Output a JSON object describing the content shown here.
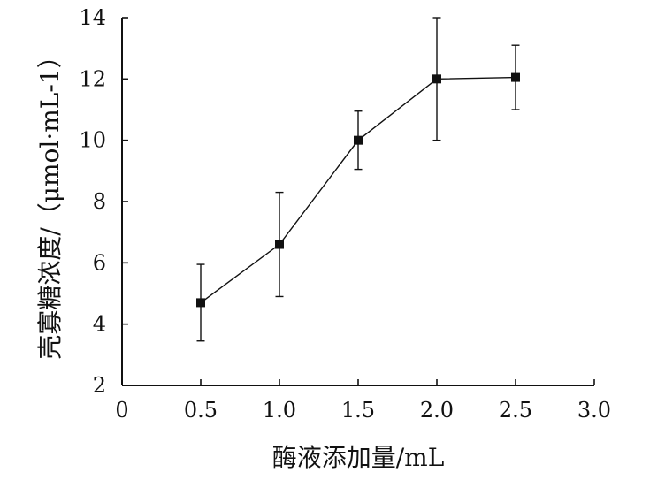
{
  "chart_data": {
    "type": "line",
    "x": [
      0.5,
      1.0,
      1.5,
      2.0,
      2.5
    ],
    "y": [
      4.7,
      6.6,
      10.0,
      12.0,
      12.05
    ],
    "errors": [
      1.25,
      1.7,
      0.95,
      2.0,
      1.05
    ],
    "xlim": [
      0,
      3.0
    ],
    "ylim": [
      2,
      14
    ],
    "xticks": [
      "0",
      "0.5",
      "1.0",
      "1.5",
      "2.0",
      "2.5",
      "3.0"
    ],
    "yticks": [
      "2",
      "4",
      "6",
      "8",
      "10",
      "12",
      "14"
    ],
    "xlabel": "酶液添加量/mL",
    "ylabel": "壳寡糖浓度/（μmol·mL-1）",
    "grid": false,
    "colors": {
      "line": "#111111",
      "marker": "#111111",
      "axis": "#111111"
    }
  }
}
